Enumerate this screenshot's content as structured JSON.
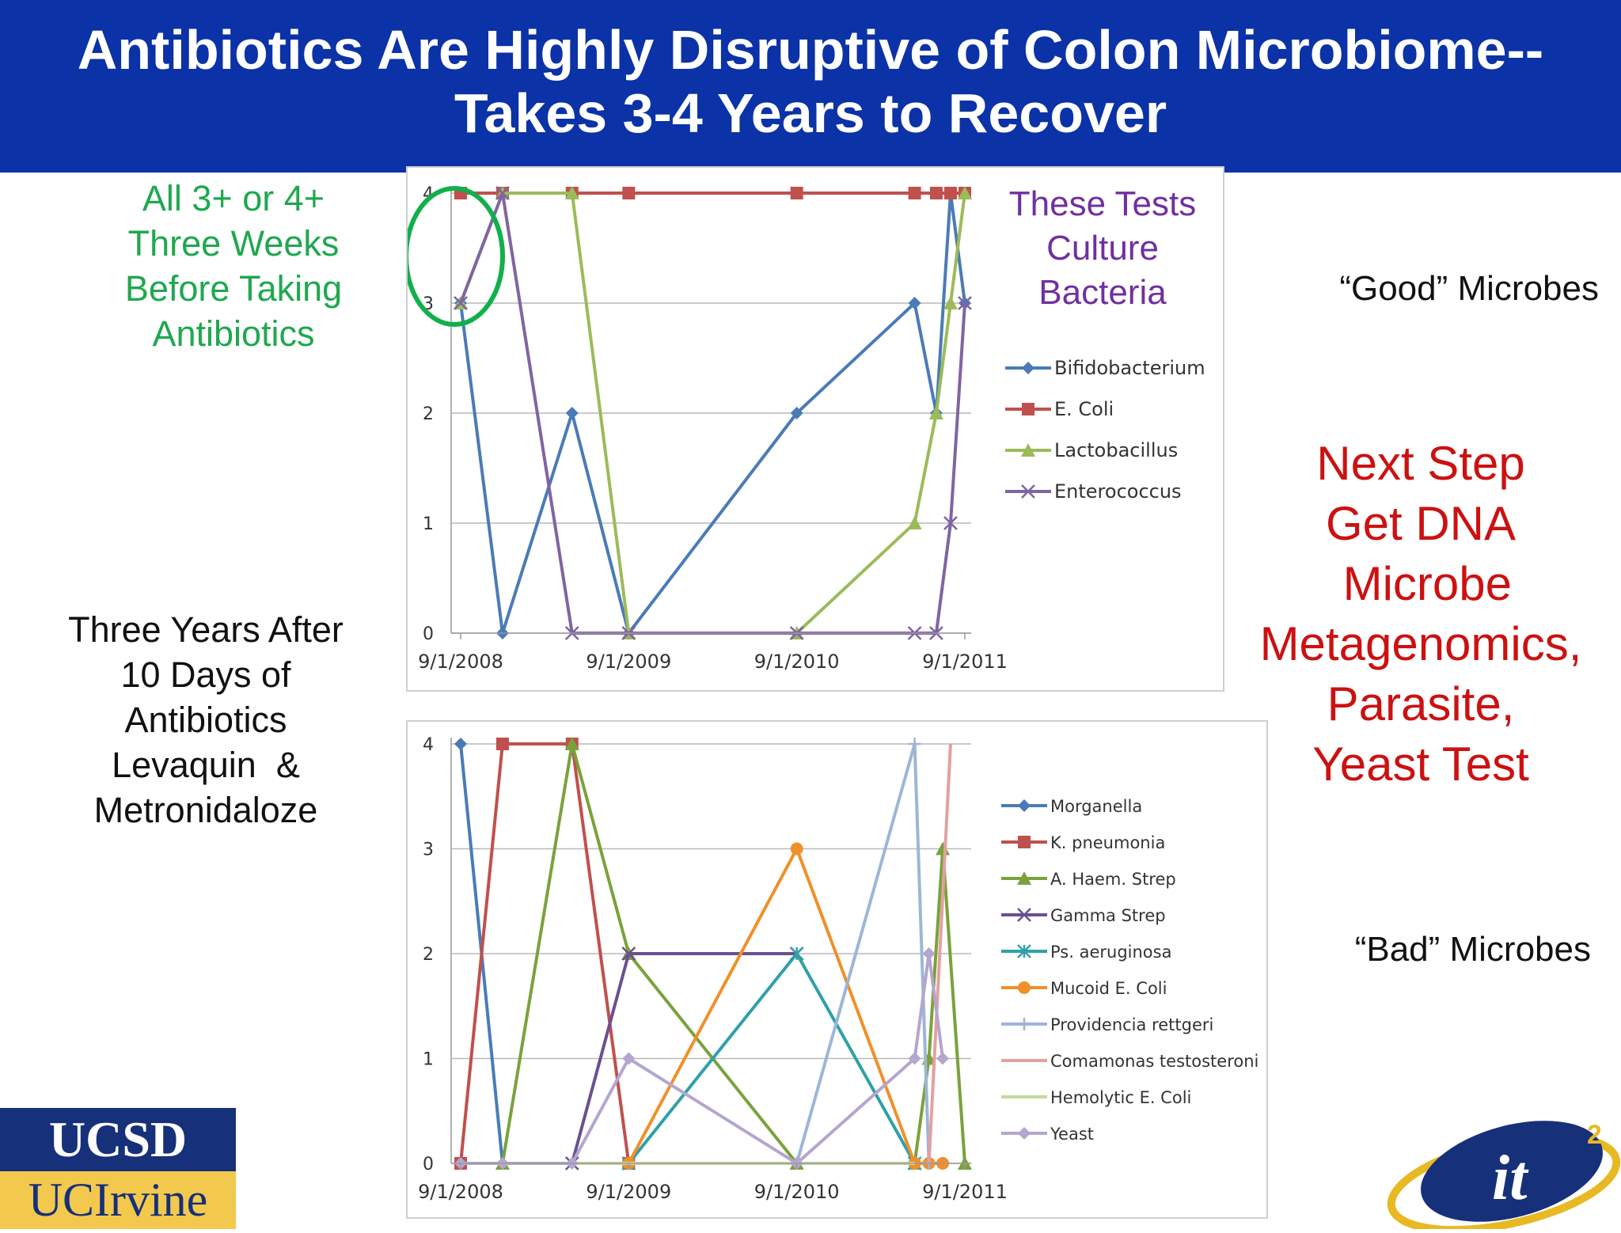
{
  "slide": {
    "title_line1": "Antibiotics Are Highly Disruptive of Colon Microbiome--",
    "title_line2": "Takes 3-4 Years to Recover",
    "note_before": [
      "All 3+ or 4+",
      "Three Weeks",
      "Before Taking",
      "Antibiotics"
    ],
    "note_after": [
      "Three Years After",
      "10 Days of",
      "Antibiotics",
      "Levaquin  &",
      "Metronidaloze"
    ],
    "good_label": "“Good” Microbes",
    "bad_label": "“Bad” Microbes",
    "next_step": [
      "Next Step",
      "Get DNA",
      " Microbe",
      "Metagenomics,",
      "Parasite,",
      "Yeast Test"
    ],
    "chart1_callout": [
      "These Tests",
      "Culture",
      "Bacteria"
    ],
    "logo_ucsd": "UCSD",
    "logo_uci": "UCIrvine",
    "logo_it2": "it",
    "logo_it2_sup": "2"
  },
  "colors": {
    "banner": "#0b32a6",
    "green_note": "#1fa84f",
    "red_note": "#cc1111",
    "callout_purple": "#7030a0",
    "circle": "#11b04a"
  },
  "chart_data": [
    {
      "type": "line",
      "title": "",
      "xlabel": "",
      "ylabel": "",
      "x_ticks": [
        "9/1/2008",
        "9/1/2009",
        "9/1/2010",
        "9/1/2011"
      ],
      "ylim": [
        0,
        4
      ],
      "y_ticks": [
        "0",
        "1",
        "2",
        "3",
        "4"
      ],
      "grid": true,
      "legend_position": "right",
      "series": [
        {
          "name": "Bifidobacterium",
          "color": "#4a7bb7",
          "marker": "diamond",
          "points": [
            [
              "2008-09-01",
              3
            ],
            [
              "2008-12-01",
              0
            ],
            [
              "2009-05-01",
              2
            ],
            [
              "2009-09-01",
              0
            ],
            [
              "2010-09-01",
              2
            ],
            [
              "2011-05-15",
              3
            ],
            [
              "2011-07-01",
              2
            ],
            [
              "2011-08-01",
              4
            ],
            [
              "2011-09-01",
              3
            ]
          ]
        },
        {
          "name": "E. Coli",
          "color": "#c0504d",
          "marker": "square",
          "points": [
            [
              "2008-09-01",
              4
            ],
            [
              "2008-12-01",
              4
            ],
            [
              "2009-05-01",
              4
            ],
            [
              "2009-09-01",
              4
            ],
            [
              "2010-09-01",
              4
            ],
            [
              "2011-05-15",
              4
            ],
            [
              "2011-07-01",
              4
            ],
            [
              "2011-08-01",
              4
            ],
            [
              "2011-09-01",
              4
            ]
          ]
        },
        {
          "name": "Lactobacillus",
          "color": "#9bbb59",
          "marker": "triangle",
          "points": [
            [
              "2008-09-01",
              3
            ],
            [
              "2008-12-01",
              4
            ],
            [
              "2009-05-01",
              4
            ],
            [
              "2009-09-01",
              0
            ],
            [
              "2010-09-01",
              0
            ],
            [
              "2011-05-15",
              1
            ],
            [
              "2011-07-01",
              2
            ],
            [
              "2011-08-01",
              3
            ],
            [
              "2011-09-01",
              4
            ]
          ]
        },
        {
          "name": "Enterococcus",
          "color": "#8064a2",
          "marker": "x",
          "points": [
            [
              "2008-09-01",
              3
            ],
            [
              "2008-12-01",
              4
            ],
            [
              "2009-05-01",
              0
            ],
            [
              "2009-09-01",
              0
            ],
            [
              "2010-09-01",
              0
            ],
            [
              "2011-05-15",
              0
            ],
            [
              "2011-07-01",
              0
            ],
            [
              "2011-08-01",
              1
            ],
            [
              "2011-09-01",
              3
            ]
          ]
        }
      ]
    },
    {
      "type": "line",
      "title": "",
      "xlabel": "",
      "ylabel": "",
      "x_ticks": [
        "9/1/2008",
        "9/1/2009",
        "9/1/2010",
        "9/1/2011"
      ],
      "ylim": [
        0,
        4
      ],
      "y_ticks": [
        "0",
        "1",
        "2",
        "3",
        "4"
      ],
      "grid": true,
      "legend_position": "right",
      "series": [
        {
          "name": "Morganella",
          "color": "#4a7bb7",
          "marker": "diamond",
          "points": [
            [
              "2008-09-01",
              4
            ],
            [
              "2008-12-01",
              0
            ]
          ]
        },
        {
          "name": "K. pneumonia",
          "color": "#c0504d",
          "marker": "square",
          "points": [
            [
              "2008-09-01",
              0
            ],
            [
              "2008-12-01",
              4
            ],
            [
              "2009-05-01",
              4
            ],
            [
              "2009-09-01",
              0
            ]
          ]
        },
        {
          "name": "A. Haem. Strep",
          "color": "#7aa23c",
          "marker": "triangle",
          "points": [
            [
              "2008-12-01",
              0
            ],
            [
              "2009-05-01",
              4
            ],
            [
              "2009-09-01",
              2
            ],
            [
              "2010-09-01",
              0
            ],
            [
              "2011-05-15",
              0
            ],
            [
              "2011-06-15",
              1
            ],
            [
              "2011-07-15",
              3
            ],
            [
              "2011-09-01",
              0
            ]
          ]
        },
        {
          "name": "Gamma Strep",
          "color": "#6b4f8f",
          "marker": "x",
          "points": [
            [
              "2009-05-01",
              0
            ],
            [
              "2009-09-01",
              2
            ],
            [
              "2010-09-01",
              2
            ]
          ]
        },
        {
          "name": "Ps. aeruginosa",
          "color": "#2fa0a8",
          "marker": "star",
          "points": [
            [
              "2009-09-01",
              0
            ],
            [
              "2010-09-01",
              2
            ],
            [
              "2011-05-15",
              0
            ]
          ]
        },
        {
          "name": "Mucoid E. Coli",
          "color": "#f0902a",
          "marker": "circle",
          "points": [
            [
              "2009-09-01",
              0
            ],
            [
              "2010-09-01",
              3
            ],
            [
              "2011-05-15",
              0
            ],
            [
              "2011-06-15",
              0
            ],
            [
              "2011-07-15",
              0
            ]
          ]
        },
        {
          "name": "Providencia rettgeri",
          "color": "#9db6d6",
          "marker": "plus",
          "points": [
            [
              "2010-09-01",
              0
            ],
            [
              "2011-05-15",
              4
            ],
            [
              "2011-06-15",
              0
            ]
          ]
        },
        {
          "name": "Comamonas testosteroni",
          "color": "#e4a0a0",
          "marker": "none",
          "points": [
            [
              "2011-06-15",
              0
            ],
            [
              "2011-08-01",
              4
            ]
          ]
        },
        {
          "name": "Hemolytic E. Coli",
          "color": "#c4d99b",
          "marker": "none",
          "points": [
            [
              "2008-09-01",
              0
            ],
            [
              "2011-05-15",
              0
            ]
          ]
        },
        {
          "name": "Yeast",
          "color": "#b4a6cf",
          "marker": "diamond",
          "points": [
            [
              "2008-09-01",
              0
            ],
            [
              "2008-12-01",
              0
            ],
            [
              "2009-05-01",
              0
            ],
            [
              "2009-09-01",
              1
            ],
            [
              "2010-09-01",
              0
            ],
            [
              "2011-05-15",
              1
            ],
            [
              "2011-06-15",
              2
            ],
            [
              "2011-07-15",
              1
            ]
          ]
        }
      ]
    }
  ]
}
